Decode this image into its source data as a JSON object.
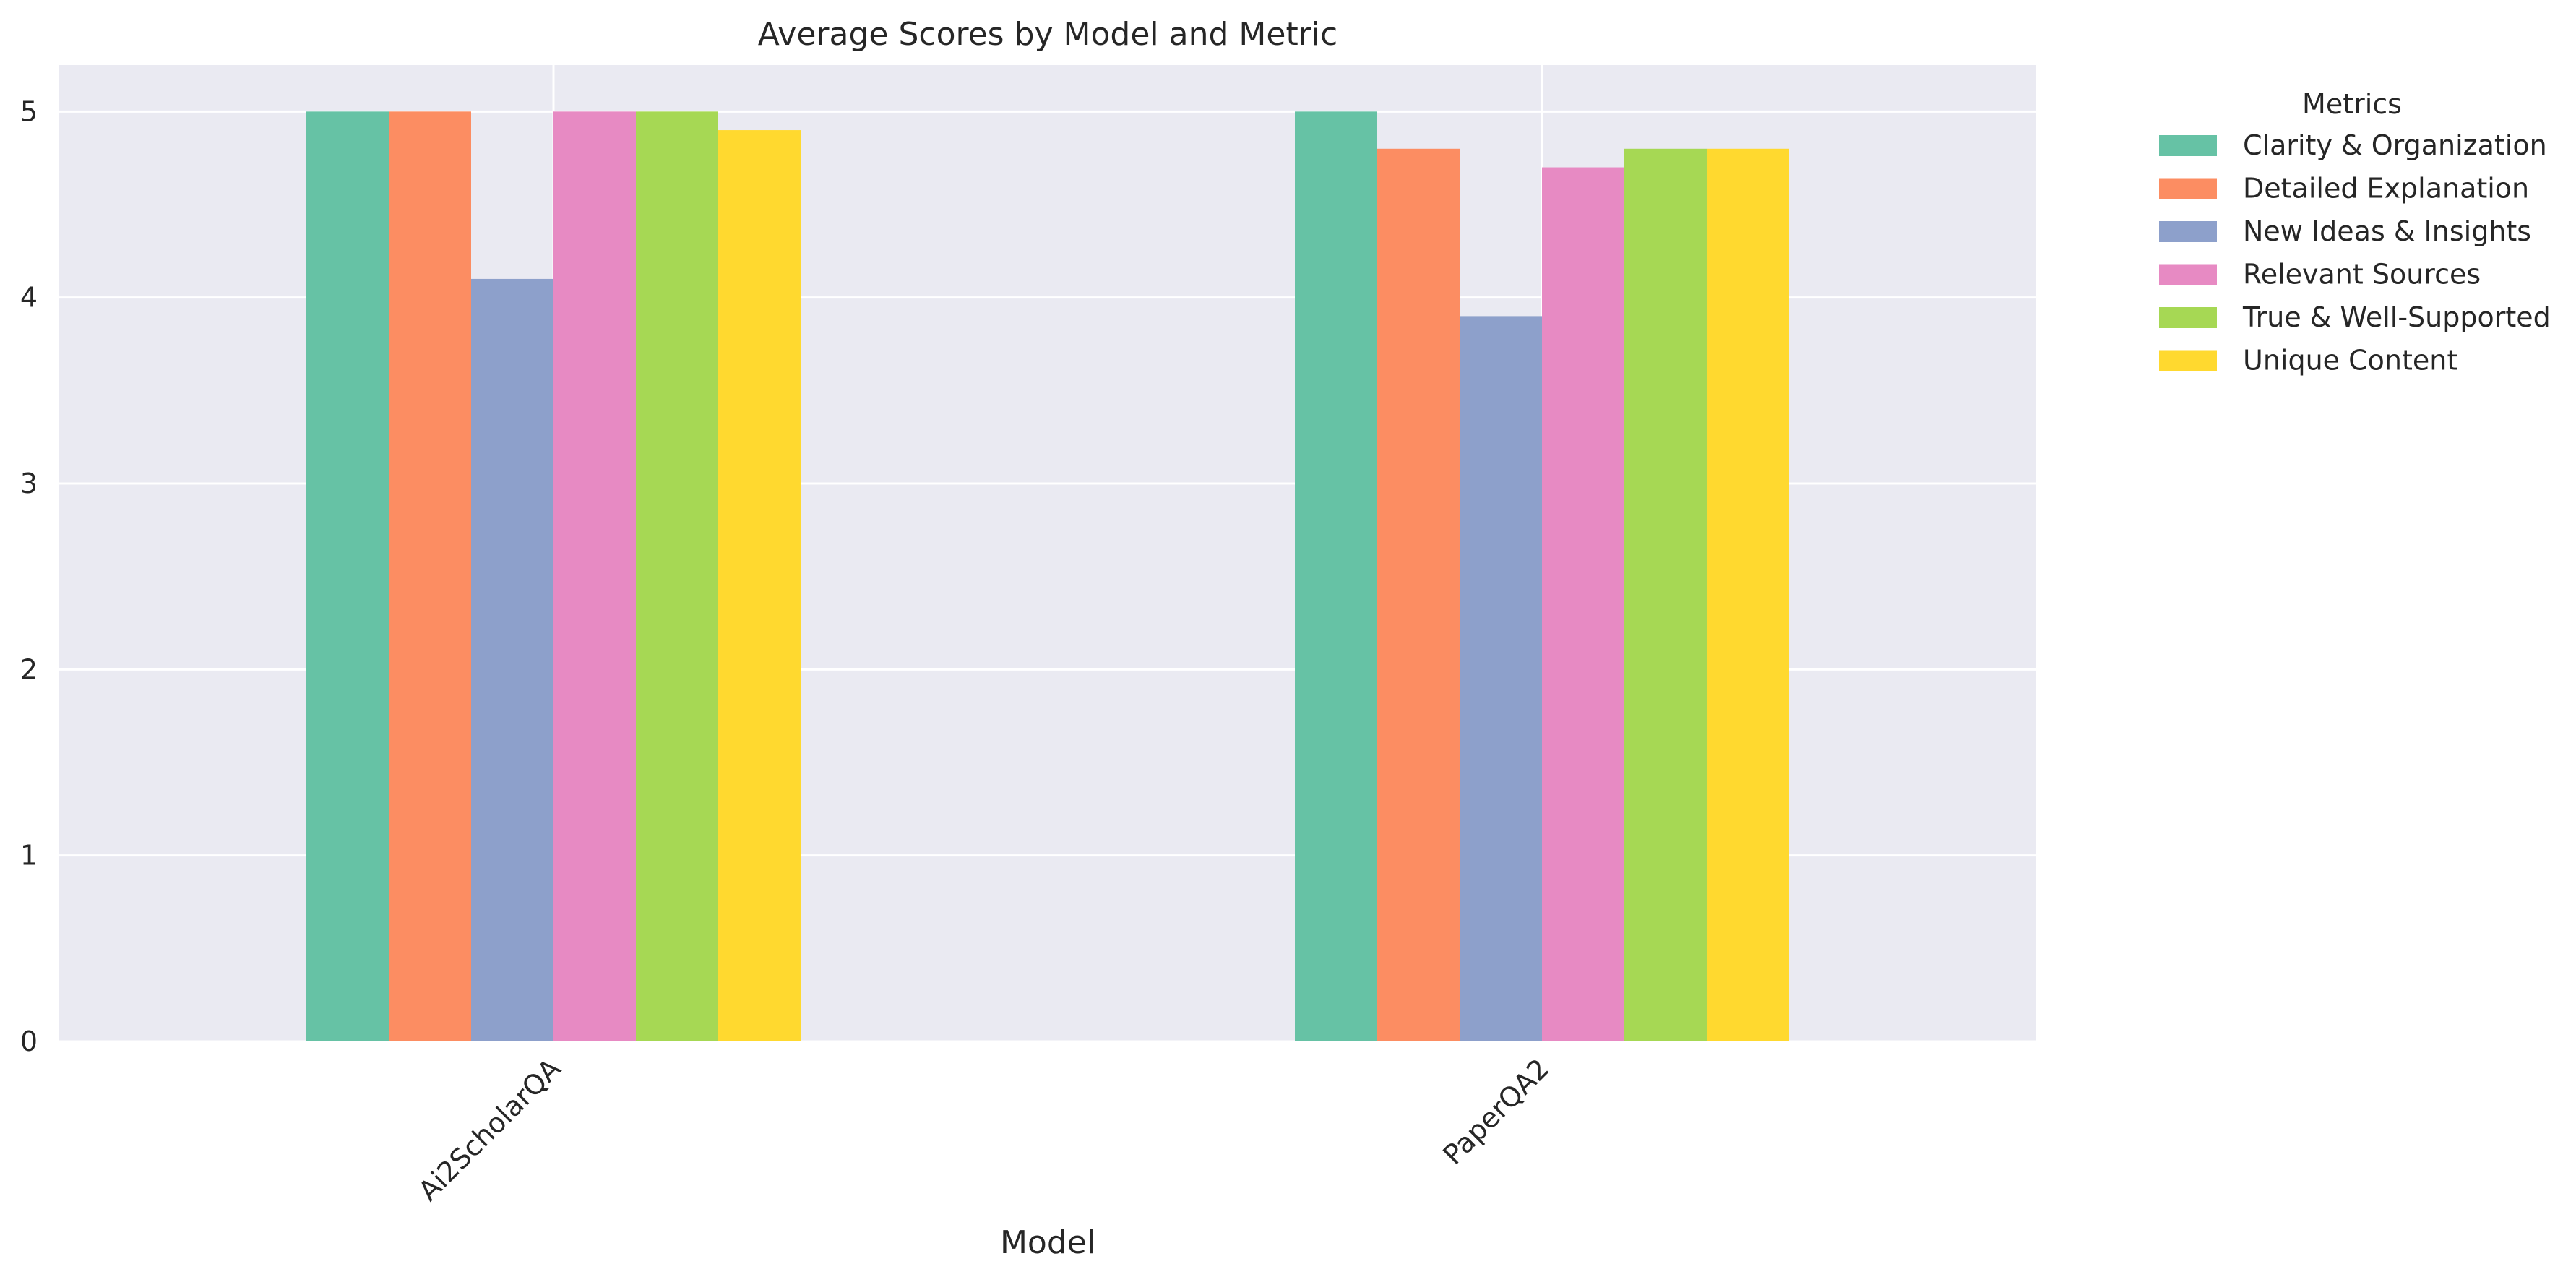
{
  "chart_data": {
    "type": "bar",
    "title": "Average Scores by Model and Metric",
    "xlabel": "Model",
    "ylabel": "",
    "categories": [
      "Ai2ScholarQA",
      "PaperQA2"
    ],
    "ylim": [
      0,
      5.25
    ],
    "yticks": [
      0,
      1,
      2,
      3,
      4,
      5
    ],
    "grid": true,
    "tick_label_rotation": 45,
    "legend": {
      "title": "Metrics",
      "placement": "outside-right-top"
    },
    "series": [
      {
        "name": "Clarity & Organization",
        "color": "#66c2a5",
        "values": [
          5.0,
          5.0
        ]
      },
      {
        "name": "Detailed Explanation",
        "color": "#fc8d62",
        "values": [
          5.0,
          4.8
        ]
      },
      {
        "name": "New Ideas & Insights",
        "color": "#8da0cb",
        "values": [
          4.1,
          3.9
        ]
      },
      {
        "name": "Relevant Sources",
        "color": "#e78ac3",
        "values": [
          5.0,
          4.7
        ]
      },
      {
        "name": "True & Well-Supported",
        "color": "#a6d854",
        "values": [
          5.0,
          4.8
        ]
      },
      {
        "name": "Unique Content",
        "color": "#ffd92f",
        "values": [
          4.9,
          4.8
        ]
      }
    ],
    "colors": {
      "plot_background": "#eaeaf2",
      "grid": "#ffffff",
      "text": "#262626"
    }
  }
}
